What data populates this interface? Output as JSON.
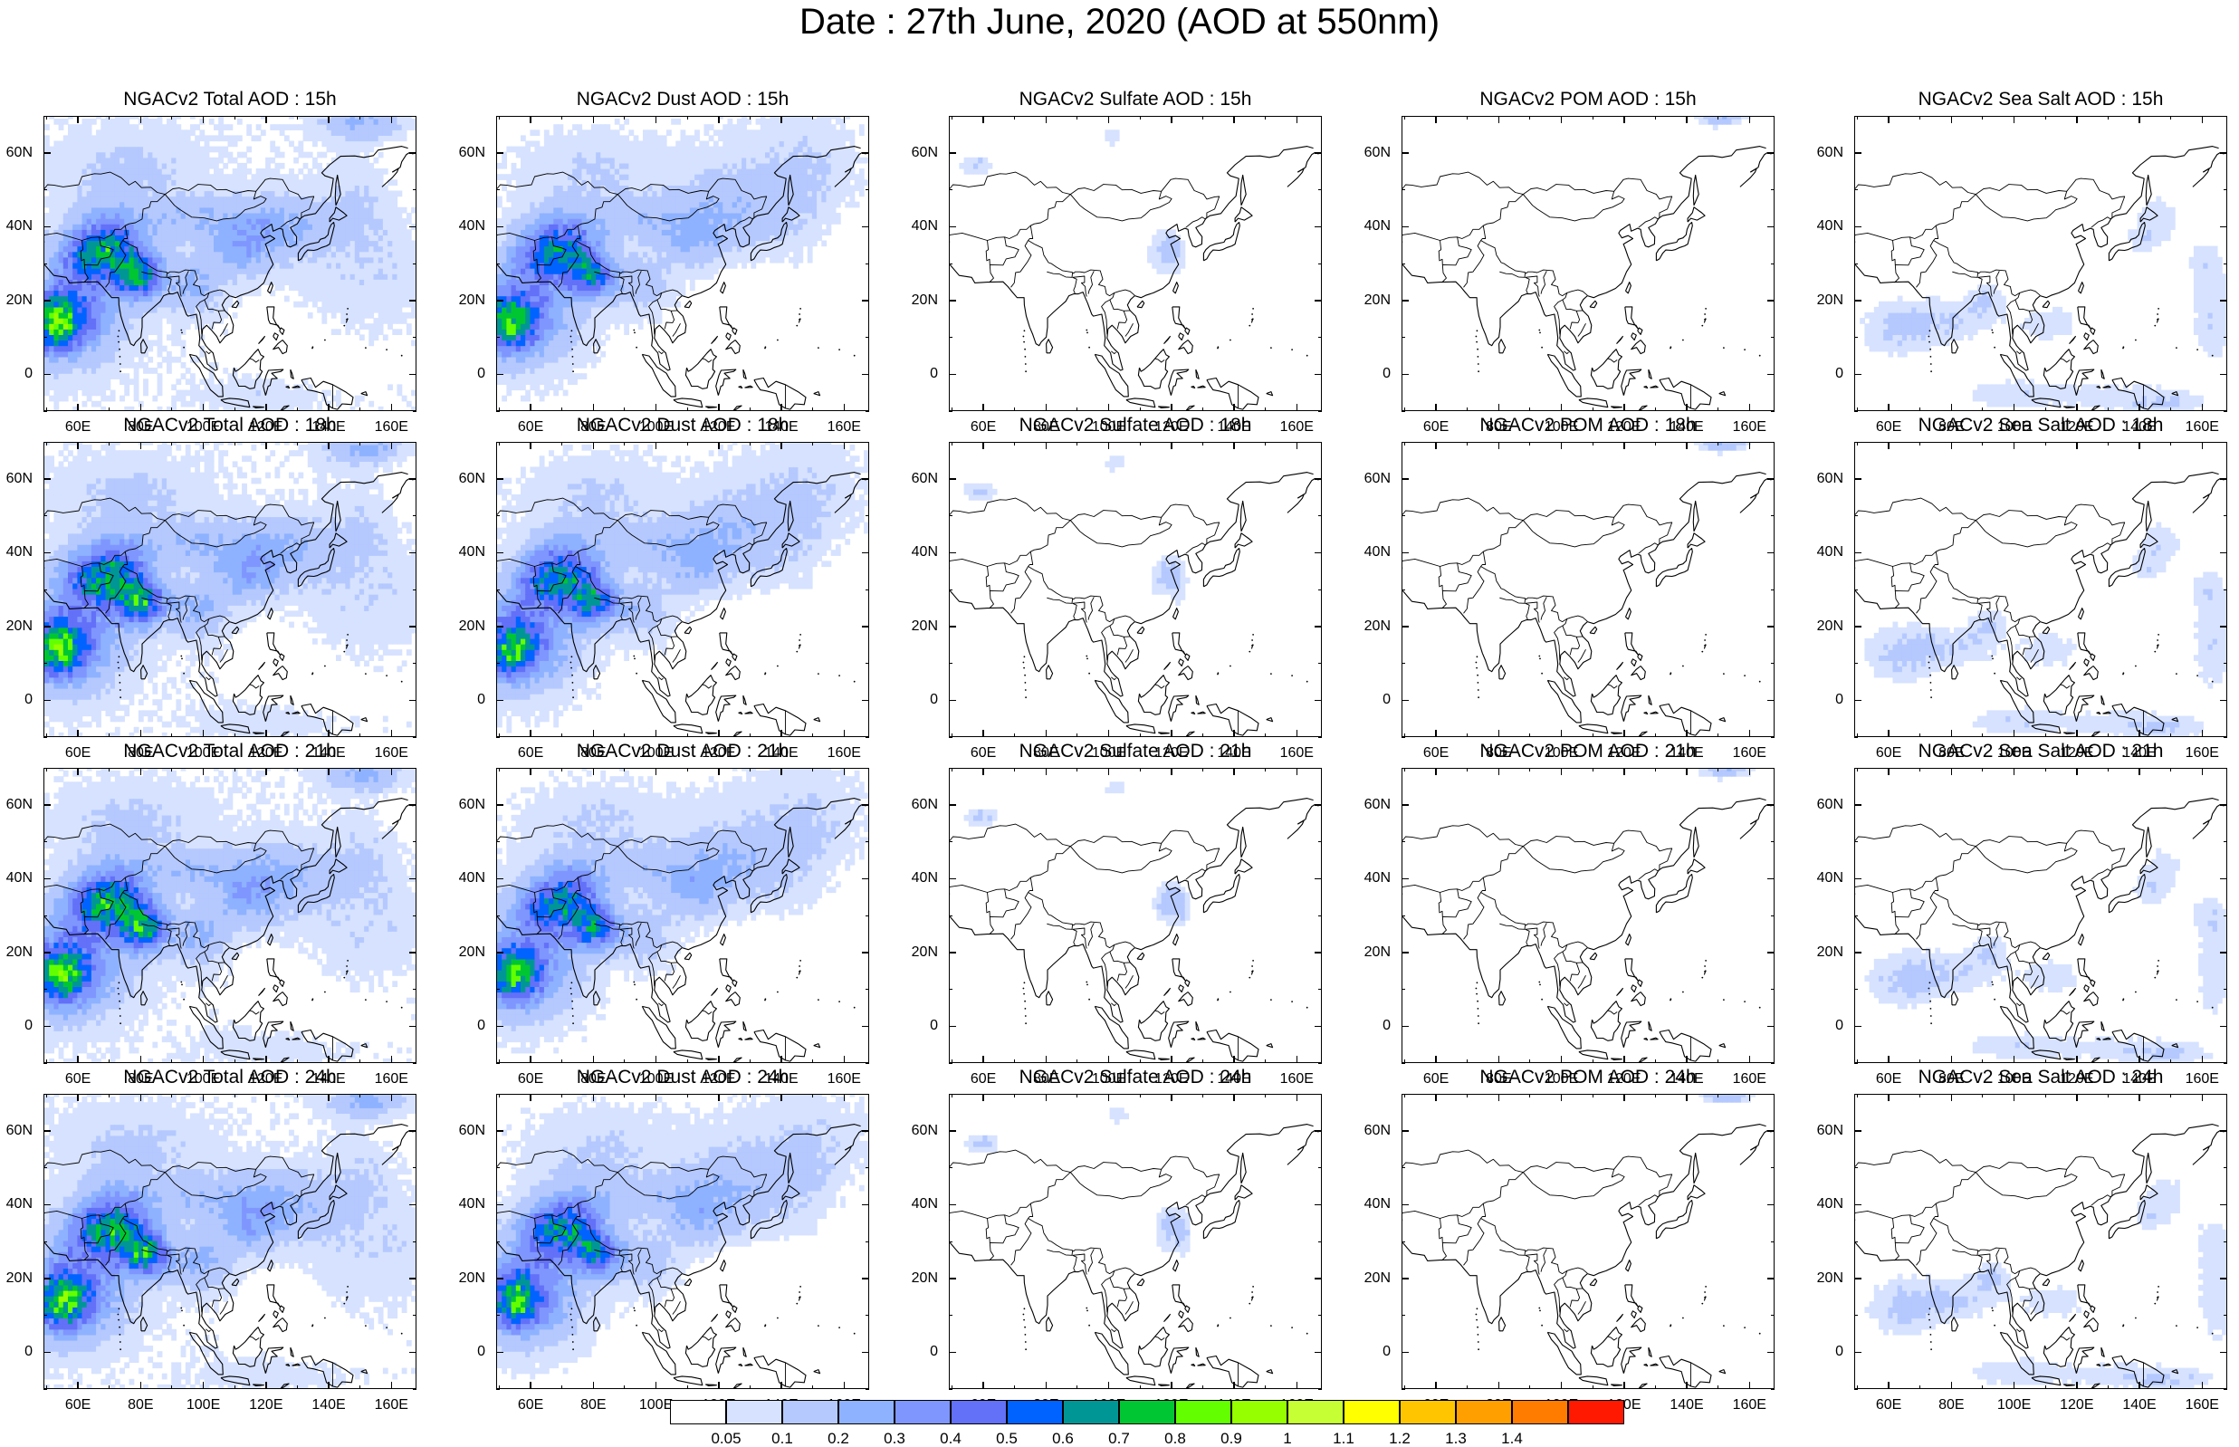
{
  "title": "Date : 27th June, 2020 (AOD at 550nm)",
  "panels": [
    {
      "title": "NGACv2 Total AOD : 15h",
      "species": "total",
      "hour": "15h"
    },
    {
      "title": "NGACv2 Dust AOD : 15h",
      "species": "dust",
      "hour": "15h"
    },
    {
      "title": "NGACv2 Sulfate AOD : 15h",
      "species": "sulfate",
      "hour": "15h"
    },
    {
      "title": "NGACv2 POM AOD : 15h",
      "species": "pom",
      "hour": "15h"
    },
    {
      "title": "NGACv2 Sea Salt AOD : 15h",
      "species": "seasalt",
      "hour": "15h"
    },
    {
      "title": "NGACv2 Total AOD : 18h",
      "species": "total",
      "hour": "18h"
    },
    {
      "title": "NGACv2 Dust AOD : 18h",
      "species": "dust",
      "hour": "18h"
    },
    {
      "title": "NGACv2 Sulfate AOD : 18h",
      "species": "sulfate",
      "hour": "18h"
    },
    {
      "title": "NGACv2 POM AOD : 18h",
      "species": "pom",
      "hour": "18h"
    },
    {
      "title": "NGACv2 Sea Salt AOD : 18h",
      "species": "seasalt",
      "hour": "18h"
    },
    {
      "title": "NGACv2 Total AOD : 21h",
      "species": "total",
      "hour": "21h"
    },
    {
      "title": "NGACv2 Dust AOD : 21h",
      "species": "dust",
      "hour": "21h"
    },
    {
      "title": "NGACv2 Sulfate AOD : 21h",
      "species": "sulfate",
      "hour": "21h"
    },
    {
      "title": "NGACv2 POM AOD : 21h",
      "species": "pom",
      "hour": "21h"
    },
    {
      "title": "NGACv2 Sea Salt AOD : 21h",
      "species": "seasalt",
      "hour": "21h"
    },
    {
      "title": "NGACv2 Total AOD : 24h",
      "species": "total",
      "hour": "24h"
    },
    {
      "title": "NGACv2 Dust AOD : 24h",
      "species": "dust",
      "hour": "24h"
    },
    {
      "title": "NGACv2 Sulfate AOD : 24h",
      "species": "sulfate",
      "hour": "24h"
    },
    {
      "title": "NGACv2 POM AOD : 24h",
      "species": "pom",
      "hour": "24h"
    },
    {
      "title": "NGACv2 Sea Salt  AOD : 24h",
      "species": "seasalt",
      "hour": "24h"
    }
  ],
  "lat_ticks": [
    "60N",
    "40N",
    "20N",
    "0"
  ],
  "lon_ticks": [
    "60E",
    "80E",
    "100E",
    "120E",
    "140E",
    "160E"
  ],
  "lat_tick_values": [
    60,
    40,
    20,
    0
  ],
  "lon_tick_values": [
    60,
    80,
    100,
    120,
    140,
    160
  ],
  "map_extent": {
    "lon_min": 49,
    "lon_max": 168,
    "lat_min": -10,
    "lat_max": 70
  },
  "colorbar": {
    "labels": [
      "0.05",
      "0.1",
      "0.2",
      "0.3",
      "0.4",
      "0.5",
      "0.6",
      "0.7",
      "0.8",
      "0.9",
      "1",
      "1.1",
      "1.2",
      "1.3",
      "1.4"
    ],
    "colors": [
      "#ffffff",
      "#d6e2ff",
      "#b5c9ff",
      "#8eb2ff",
      "#7f96ff",
      "#6370f8",
      "#0063ff",
      "#009696",
      "#00c633",
      "#63ff00",
      "#96ff00",
      "#c6ff33",
      "#ffff00",
      "#ffc600",
      "#ffa000",
      "#ff7c00",
      "#ff1900"
    ]
  }
}
